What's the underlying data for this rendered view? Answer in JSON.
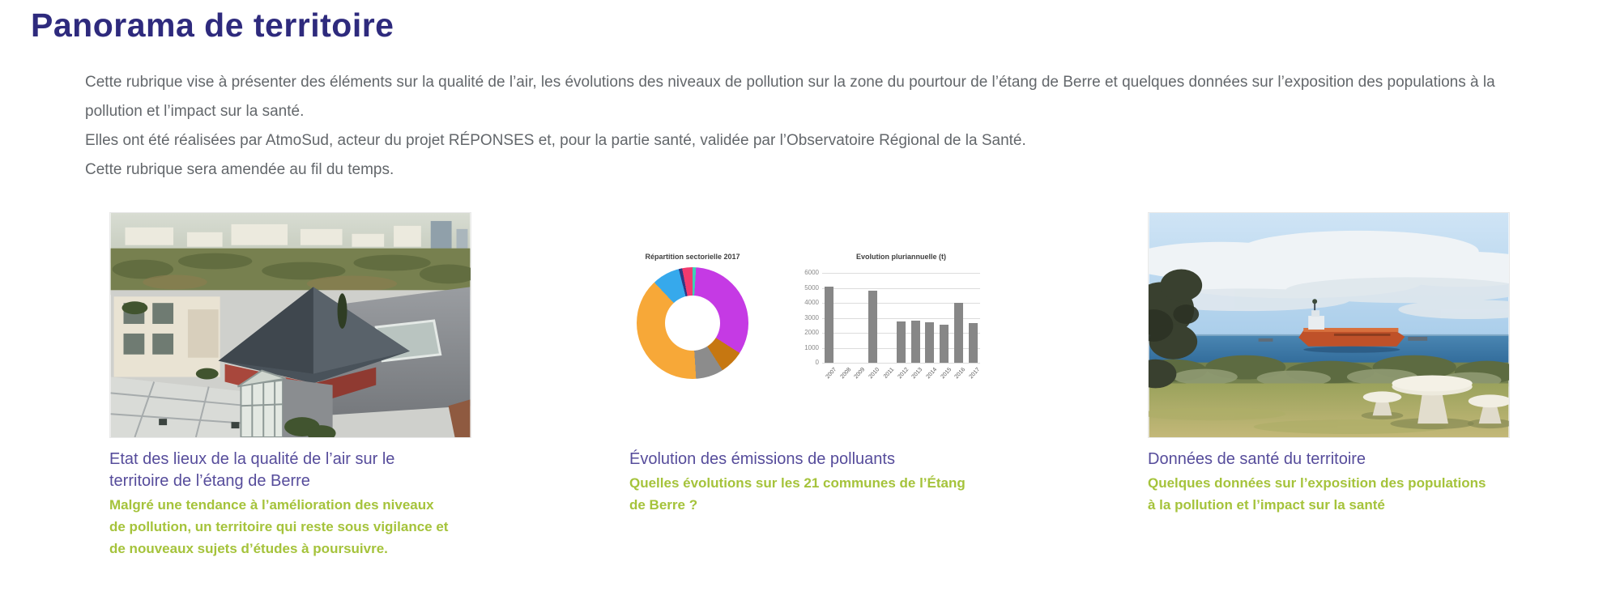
{
  "page": {
    "title": "Panorama de territoire",
    "intro": [
      "Cette rubrique vise à présenter des éléments sur la qualité de l’air, les évolutions des niveaux de pollution sur la zone du pourtour de l’étang de Berre et quelques données sur l’exposition des populations à la pollution et l’impact sur la santé.",
      "Elles ont été réalisées par AtmoSud, acteur du projet RÉPONSES et, pour la partie santé, validée par l’Observatoire Régional de la Santé.",
      "Cette rubrique sera amendée au fil du temps."
    ]
  },
  "cards": [
    {
      "title": "Etat des lieux de la qualité de l’air sur le territoire de l’étang de Berre",
      "subtitle": "Malgré une tendance à l’amélioration des niveaux de pollution, un territoire qui reste sous vigilance et de nouveaux sujets d’études à poursuivre.",
      "image": "aerial-photo-of-buildings-etang-de-berre"
    },
    {
      "title": "Évolution des émissions de polluants",
      "subtitle": "Quelles évolutions sur les 21 communes de l’Étang de Berre ?",
      "image": "emissions-charts"
    },
    {
      "title": "Données de santé du territoire",
      "subtitle": "Quelques données sur l’exposition des populations à la pollution et l’impact sur la santé",
      "image": "seaside-photo-with-cargo-ship"
    }
  ],
  "colors": {
    "heading": "#2e2a7d",
    "body_text": "#63676b",
    "card_title": "#564c9b",
    "highlight_green": "#a5c33b",
    "bar_fill": "#878787"
  },
  "chart_data": [
    {
      "type": "pie",
      "title": "Répartition sectorielle 2017",
      "donut": true,
      "slices": [
        {
          "label": "teal-sliver",
          "pct": 1,
          "color": "#3dd2b5"
        },
        {
          "label": "magenta",
          "pct": 33,
          "color": "#c53ae4"
        },
        {
          "label": "dark-orange",
          "pct": 7,
          "color": "#c67711"
        },
        {
          "label": "gray",
          "pct": 8,
          "color": "#8c8c8c"
        },
        {
          "label": "amber",
          "pct": 39,
          "color": "#f7a838"
        },
        {
          "label": "blue",
          "pct": 8,
          "color": "#36a9ec"
        },
        {
          "label": "navy-sliver",
          "pct": 1,
          "color": "#2c3a86"
        },
        {
          "label": "pink",
          "pct": 3,
          "color": "#f23a6e"
        }
      ]
    },
    {
      "type": "bar",
      "title": "Evolution pluriannuelle (t)",
      "categories": [
        "2007",
        "2008",
        "2009",
        "2010",
        "2011",
        "2012",
        "2013",
        "2014",
        "2015",
        "2016",
        "2017"
      ],
      "values": [
        5100,
        0,
        0,
        4800,
        0,
        2750,
        2800,
        2700,
        2550,
        4000,
        2650
      ],
      "ylim": [
        0,
        6000
      ],
      "yticks": [
        0,
        1000,
        2000,
        3000,
        4000,
        5000,
        6000
      ],
      "grid": true,
      "legend": false
    }
  ]
}
